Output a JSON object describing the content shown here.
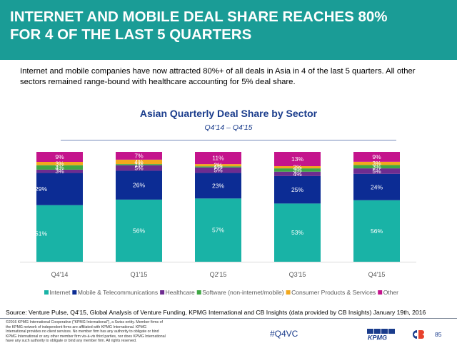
{
  "header": {
    "title_line1": "INTERNET AND MOBILE DEAL SHARE REACHES 80%",
    "title_line2": "FOR 4 OF THE LAST 5 QUARTERS"
  },
  "intro": "Internet and mobile companies have now attracted 80%+ of all deals in Asia in 4 of the last 5 quarters. All other sectors remained range-bound with healthcare accounting for 5% deal share.",
  "chart_data": {
    "type": "bar",
    "stacked": true,
    "percent": true,
    "title": "Asian Quarterly Deal Share by Sector",
    "subtitle": "Q4'14 – Q4'15",
    "categories": [
      "Q4'14",
      "Q1'15",
      "Q2'15",
      "Q3'15",
      "Q4'15"
    ],
    "ylim": [
      0,
      100
    ],
    "legend_position": "bottom",
    "series": [
      {
        "name": "Internet",
        "color": "#19b3a6",
        "values": [
          51,
          56,
          57,
          53,
          56
        ]
      },
      {
        "name": "Mobile & Telecommunications",
        "color": "#0c2c94",
        "values": [
          29,
          26,
          23,
          25,
          24
        ]
      },
      {
        "name": "Healthcare",
        "color": "#6e2c90",
        "values": [
          3,
          5,
          5,
          4,
          5
        ]
      },
      {
        "name": "Software (non-internet/mobile)",
        "color": "#3fa845",
        "values": [
          4,
          1,
          1,
          3,
          3
        ]
      },
      {
        "name": "Consumer Products & Services",
        "color": "#f2a81d",
        "values": [
          3,
          4,
          2,
          2,
          3
        ]
      },
      {
        "name": "Other",
        "color": "#c4148c",
        "values": [
          9,
          7,
          11,
          13,
          9
        ]
      }
    ]
  },
  "source": "Source: Venture Pulse, Q4'15, Global Analysis of Venture Funding, KPMG International and CB Insights (data provided by CB Insights) January 19th, 2016",
  "legal": "©2016 KPMG International Cooperative (\"KPMG International\"), a Swiss entity. Member firms of the KPMG network of independent firms are affiliated with KPMG International. KPMG International provides no client services. No member firm has any authority to obligate or bind KPMG International or any other member firm vis-à-vis third parties, nor does KPMG International have any such authority to obligate or bind any member firm. All rights reserved.",
  "hashtag": "#Q4VC",
  "logo_kpmg": "KPMG",
  "page_number": "85"
}
